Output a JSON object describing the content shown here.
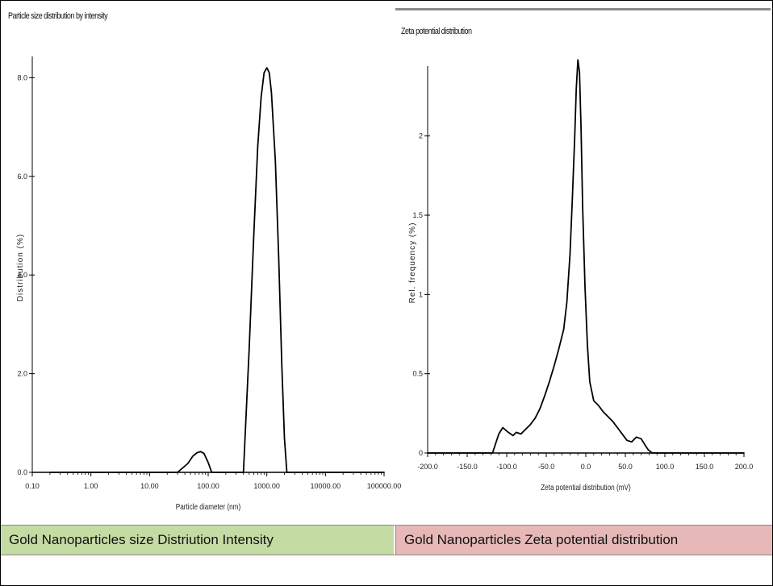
{
  "chart_data": [
    {
      "type": "line",
      "title": "Particle size distribution by intensity",
      "xlabel": "Particle diameter (nm)",
      "ylabel": "Distribution (%)",
      "xscale": "log",
      "xlim": [
        0.1,
        100000
      ],
      "ylim": [
        0,
        8.3
      ],
      "xticks": [
        0.1,
        1,
        10,
        100,
        1000,
        10000,
        100000
      ],
      "xtick_labels": [
        "0.10",
        "1.00",
        "10.00",
        "100.00",
        "1000.00",
        "10000.00",
        "100000.00"
      ],
      "yticks": [
        0,
        2,
        4,
        6,
        8
      ],
      "ytick_labels": [
        "0.0",
        "2.0",
        "4.0",
        "6.0",
        "8.0"
      ],
      "grid": false,
      "series": [
        {
          "x": [
            0.2,
            30,
            45,
            55,
            65,
            75,
            85,
            100,
            115,
            150,
            190,
            300,
            400,
            500,
            600,
            700,
            800,
            900,
            1000,
            1100,
            1200,
            1400,
            1600,
            1800,
            2000,
            2200,
            100000
          ],
          "y": [
            0,
            0,
            0.18,
            0.33,
            0.4,
            0.42,
            0.38,
            0.2,
            0,
            0,
            0,
            0,
            0,
            2.5,
            4.8,
            6.6,
            7.6,
            8.1,
            8.2,
            8.1,
            7.7,
            6.3,
            4.3,
            2.2,
            0.7,
            0,
            0
          ]
        }
      ]
    },
    {
      "type": "line",
      "title": "Zeta potential distribution",
      "xlabel": "Zeta potential distribution (mV)",
      "ylabel": "Rel. frequency (%)",
      "xlim": [
        -200,
        200
      ],
      "ylim": [
        0,
        2.4
      ],
      "xticks": [
        -200,
        -150,
        -100,
        -50,
        0,
        50,
        100,
        150,
        200
      ],
      "xtick_labels": [
        "-200.0",
        "-150.0",
        "-100.0",
        "-50.0",
        "0.0",
        "50.0",
        "100.0",
        "150.0",
        "200.0"
      ],
      "yticks": [
        0,
        0.5,
        1,
        1.5,
        2
      ],
      "ytick_labels": [
        "0",
        "0.5",
        "1",
        "1.5",
        "2"
      ],
      "grid": false,
      "series": [
        {
          "x": [
            -200,
            -118,
            -110,
            -105,
            -98,
            -92,
            -88,
            -82,
            -76,
            -70,
            -64,
            -58,
            -52,
            -46,
            -40,
            -34,
            -28,
            -24,
            -20,
            -17,
            -14,
            -12,
            -10,
            -8,
            -6,
            -4,
            -1,
            2,
            5,
            10,
            16,
            22,
            28,
            34,
            40,
            46,
            52,
            58,
            64,
            70,
            75,
            79,
            84,
            200
          ],
          "y": [
            0,
            0,
            0.12,
            0.16,
            0.13,
            0.11,
            0.13,
            0.12,
            0.15,
            0.18,
            0.22,
            0.28,
            0.36,
            0.45,
            0.55,
            0.66,
            0.78,
            0.95,
            1.25,
            1.6,
            2.0,
            2.3,
            2.48,
            2.4,
            2.05,
            1.55,
            1.05,
            0.68,
            0.45,
            0.33,
            0.3,
            0.26,
            0.23,
            0.2,
            0.16,
            0.12,
            0.08,
            0.07,
            0.1,
            0.09,
            0.05,
            0.02,
            0,
            0
          ]
        }
      ]
    }
  ],
  "captions": {
    "left": "Gold Nanoparticles size Distriution Intensity",
    "right": "Gold Nanoparticles Zeta potential distribution"
  }
}
